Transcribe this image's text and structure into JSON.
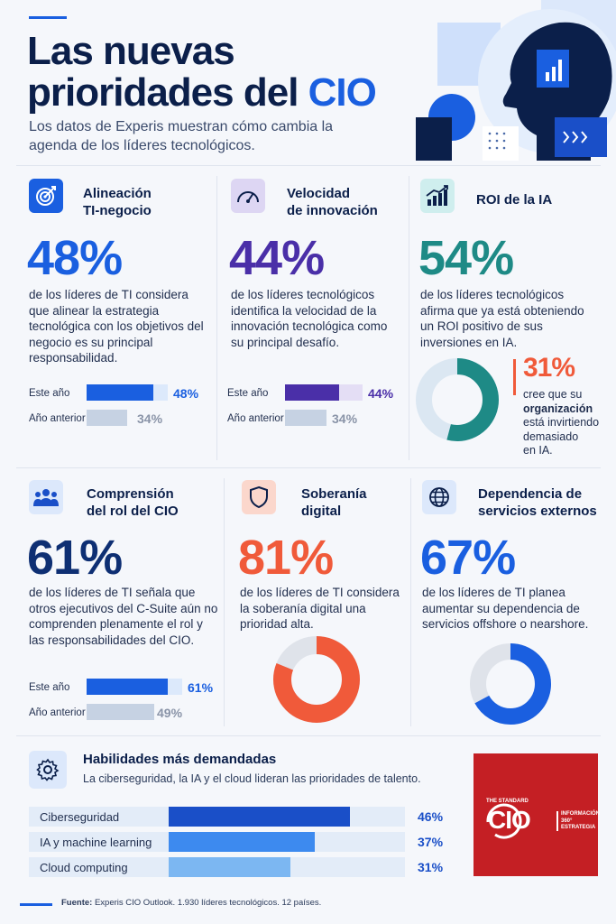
{
  "header": {
    "title_line1": "Las nuevas",
    "title_line2_a": "prioridades del ",
    "title_line2_b": "CIO",
    "subtitle": "Los datos de Experis muestran cómo cambia la agenda de los líderes tecnológicos."
  },
  "colors": {
    "accent": "#1a5fe0",
    "navy": "#0b1f4a",
    "purple": "#4a2fa8",
    "teal": "#1e8a86",
    "orange": "#f05a3a",
    "logo_red": "#c41f24"
  },
  "cards": {
    "alineacion": {
      "icon": "target-icon",
      "title_l1": "Alineación",
      "title_l2": "TI-negocio",
      "value": "48%",
      "desc": "de los líderes de TI considera que alinear la estrategia tecnológica con los objetivos del negocio es su principal responsabilidad.",
      "current_label": "Este año",
      "current_value": "48%",
      "previous_label": "Año anterior",
      "previous_value": "34%"
    },
    "velocidad": {
      "icon": "speedometer-icon",
      "title_l1": "Velocidad",
      "title_l2": "de innovación",
      "value": "44%",
      "desc": "de los líderes tecnológicos identifica la velocidad de la innovación tecnológica como su principal desafío.",
      "current_label": "Este año",
      "current_value": "44%",
      "previous_label": "Año anterior",
      "previous_value": "34%"
    },
    "roi": {
      "icon": "growth-chart-icon",
      "title": "ROI de la IA",
      "value": "54%",
      "desc": "de los líderes tecnológicos afirma que ya está obteniendo un ROI positivo de sus inversiones en IA.",
      "secondary_value": "31%",
      "secondary_l1": "cree que su",
      "secondary_l2": "organización",
      "secondary_l3": "está invirtiendo",
      "secondary_l4": "demasiado",
      "secondary_l5": "en IA."
    },
    "comprension": {
      "icon": "people-icon",
      "title_l1": "Comprensión",
      "title_l2": "del rol del CIO",
      "value": "61%",
      "desc": "de los líderes de TI señala que otros ejecutivos del C-Suite aún no comprenden plenamente el rol y las responsabilidades del CIO.",
      "current_label": "Este año",
      "current_value": "61%",
      "previous_label": "Año anterior",
      "previous_value": "49%"
    },
    "soberania": {
      "icon": "shield-icon",
      "title_l1": "Soberanía",
      "title_l2": "digital",
      "value": "81%",
      "desc": "de los líderes de TI considera la soberanía digital una prioridad alta."
    },
    "dependencia": {
      "icon": "globe-icon",
      "title_l1": "Dependencia de",
      "title_l2": "servicios externos",
      "value": "67%",
      "desc": "de los líderes de TI planea aumentar su dependencia de servicios offshore o nearshore."
    }
  },
  "skills": {
    "icon": "gear-icon",
    "title": "Habilidades más demandadas",
    "subtitle": "La ciberseguridad, la IA y el cloud lideran las prioridades de talento."
  },
  "logo": {
    "top": "THE STANDARD",
    "main": "CIO",
    "side_l1": "INFORMACIÓN",
    "side_l2": "360°",
    "side_l3": "ESTRATEGIA"
  },
  "footer": {
    "label": "Fuente:",
    "text": " Experis CIO Outlook. 1.930 líderes tecnológicos. 12 países."
  },
  "chart_data": [
    {
      "type": "bar",
      "title": "Alineación TI-negocio",
      "categories": [
        "Este año",
        "Año anterior"
      ],
      "values": [
        48,
        34
      ],
      "ylim": [
        0,
        100
      ]
    },
    {
      "type": "bar",
      "title": "Velocidad de innovación",
      "categories": [
        "Este año",
        "Año anterior"
      ],
      "values": [
        44,
        34
      ],
      "ylim": [
        0,
        100
      ]
    },
    {
      "type": "pie",
      "title": "ROI de la IA",
      "values": [
        54,
        46
      ]
    },
    {
      "type": "bar",
      "title": "Comprensión del rol del CIO",
      "categories": [
        "Este año",
        "Año anterior"
      ],
      "values": [
        61,
        49
      ],
      "ylim": [
        0,
        100
      ]
    },
    {
      "type": "pie",
      "title": "Soberanía digital",
      "values": [
        81,
        19
      ]
    },
    {
      "type": "pie",
      "title": "Dependencia de servicios externos",
      "values": [
        67,
        33
      ]
    },
    {
      "type": "bar",
      "title": "Habilidades más demandadas",
      "categories": [
        "Ciberseguridad",
        "IA y machine learning",
        "Cloud computing"
      ],
      "values": [
        46,
        37,
        31
      ],
      "value_labels": [
        "46%",
        "37%",
        "31%"
      ],
      "ylim": [
        0,
        60
      ]
    }
  ]
}
